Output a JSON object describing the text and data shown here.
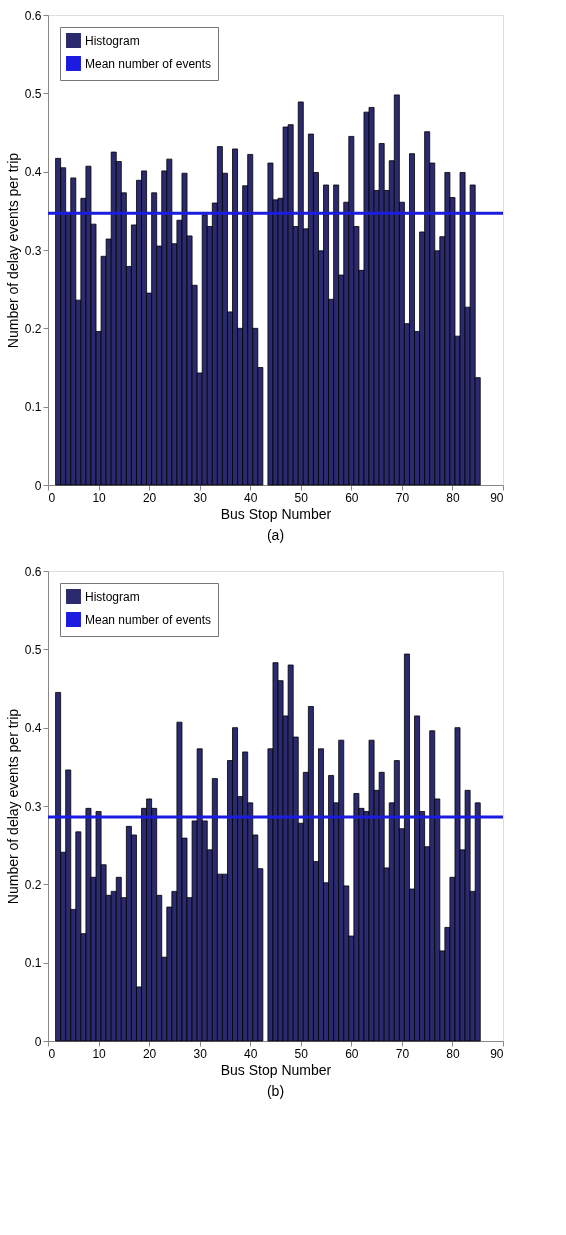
{
  "chart_data": [
    {
      "type": "bar",
      "xlabel": "Bus Stop Number",
      "ylabel": "Number of delay events per trip",
      "annotations": [
        "(a)"
      ],
      "x": [
        2,
        3,
        4,
        5,
        6,
        7,
        8,
        9,
        10,
        11,
        12,
        13,
        14,
        15,
        16,
        17,
        18,
        19,
        20,
        21,
        22,
        23,
        24,
        25,
        26,
        27,
        28,
        29,
        30,
        31,
        32,
        33,
        34,
        35,
        36,
        37,
        38,
        39,
        40,
        41,
        42,
        43,
        44,
        45,
        46,
        47,
        48,
        49,
        50,
        51,
        52,
        53,
        54,
        55,
        56,
        57,
        58,
        59,
        60,
        61,
        62,
        63,
        64,
        65,
        66,
        67,
        68,
        69,
        70,
        71,
        72,
        73,
        74,
        75,
        76,
        77,
        78,
        79,
        80,
        81,
        82,
        83,
        84,
        85
      ],
      "series": [
        {
          "name": "Histogram",
          "color": "#2b2a6e",
          "values": [
            0.417,
            0.405,
            0.348,
            0.392,
            0.236,
            0.366,
            0.407,
            0.333,
            0.196,
            0.292,
            0.314,
            0.425,
            0.413,
            0.373,
            0.279,
            0.332,
            0.389,
            0.401,
            0.245,
            0.373,
            0.305,
            0.401,
            0.416,
            0.308,
            0.338,
            0.398,
            0.318,
            0.255,
            0.143,
            0.345,
            0.33,
            0.36,
            0.432,
            0.398,
            0.221,
            0.429,
            0.2,
            0.382,
            0.422,
            0.2,
            0.15,
            null,
            0.411,
            0.364,
            0.366,
            0.457,
            0.46,
            0.33,
            0.489,
            0.327,
            0.448,
            0.399,
            0.299,
            0.383,
            0.237,
            0.383,
            0.268,
            0.361,
            0.445,
            0.33,
            0.274,
            0.476,
            0.482,
            0.376,
            0.436,
            0.376,
            0.414,
            0.498,
            0.361,
            0.206,
            0.423,
            0.196,
            0.323,
            0.451,
            0.411,
            0.299,
            0.317,
            0.399,
            0.367,
            0.19,
            0.399,
            0.227,
            0.383,
            0.137
          ]
        }
      ],
      "ref_lines": [
        {
          "axis": "y",
          "value": 0.347,
          "label": "Mean number of events",
          "color": "#1c1ce0"
        }
      ],
      "xlim": [
        0,
        90
      ],
      "xticks": [
        0,
        10,
        20,
        30,
        40,
        50,
        60,
        70,
        80,
        90
      ],
      "ylim": [
        0,
        0.6
      ],
      "yticks": [
        0,
        0.1,
        0.2,
        0.3,
        0.4,
        0.5,
        0.6
      ],
      "legend": "top left",
      "grid": false
    },
    {
      "type": "bar",
      "xlabel": "Bus Stop Number",
      "ylabel": "Number of delay events per trip",
      "annotations": [
        "(b)"
      ],
      "x": [
        2,
        3,
        4,
        5,
        6,
        7,
        8,
        9,
        10,
        11,
        12,
        13,
        14,
        15,
        16,
        17,
        18,
        19,
        20,
        21,
        22,
        23,
        24,
        25,
        26,
        27,
        28,
        29,
        30,
        31,
        32,
        33,
        34,
        35,
        36,
        37,
        38,
        39,
        40,
        41,
        42,
        43,
        44,
        45,
        46,
        47,
        48,
        49,
        50,
        51,
        52,
        53,
        54,
        55,
        56,
        57,
        58,
        59,
        60,
        61,
        62,
        63,
        64,
        65,
        66,
        67,
        68,
        69,
        70,
        71,
        72,
        73,
        74,
        75,
        76,
        77,
        78,
        79,
        80,
        81,
        82,
        83,
        84,
        85
      ],
      "series": [
        {
          "name": "Histogram",
          "color": "#2b2a6e",
          "values": [
            0.445,
            0.241,
            0.346,
            0.168,
            0.267,
            0.137,
            0.297,
            0.209,
            0.293,
            0.225,
            0.186,
            0.191,
            0.209,
            0.183,
            0.274,
            0.263,
            0.069,
            0.297,
            0.309,
            0.297,
            0.186,
            0.107,
            0.171,
            0.191,
            0.407,
            0.259,
            0.183,
            0.281,
            0.373,
            0.281,
            0.244,
            0.335,
            0.213,
            0.213,
            0.358,
            0.4,
            0.312,
            0.369,
            0.304,
            0.263,
            0.22,
            null,
            0.373,
            0.483,
            0.46,
            0.415,
            0.48,
            0.388,
            0.278,
            0.343,
            0.427,
            0.229,
            0.373,
            0.202,
            0.339,
            0.304,
            0.384,
            0.198,
            0.134,
            0.316,
            0.297,
            0.293,
            0.384,
            0.32,
            0.343,
            0.221,
            0.304,
            0.358,
            0.271,
            0.494,
            0.194,
            0.415,
            0.293,
            0.248,
            0.396,
            0.309,
            0.115,
            0.145,
            0.209,
            0.4,
            0.244,
            0.32,
            0.191,
            0.304
          ]
        }
      ],
      "ref_lines": [
        {
          "axis": "y",
          "value": 0.286,
          "label": "Mean number of events",
          "color": "#1c1ce0"
        }
      ],
      "xlim": [
        0,
        90
      ],
      "xticks": [
        0,
        10,
        20,
        30,
        40,
        50,
        60,
        70,
        80,
        90
      ],
      "ylim": [
        0,
        0.6
      ],
      "yticks": [
        0,
        0.1,
        0.2,
        0.3,
        0.4,
        0.5,
        0.6
      ],
      "legend": "top left",
      "grid": false
    }
  ]
}
